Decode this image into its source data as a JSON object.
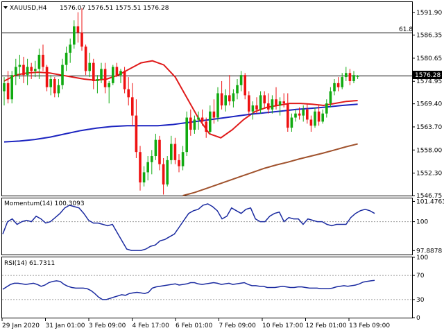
{
  "main": {
    "symbol": "XAUUSD,H4",
    "ohlc": "1576.07 1576.51 1575.51 1576.28",
    "fib_label": "61.8",
    "price_tag": "1576.28"
  },
  "momentum": {
    "title": "Momentum(14) 100.3093"
  },
  "rsi": {
    "title": "RSI(14) 61.7311"
  },
  "colors": {
    "bull": "#11aa11",
    "bear": "#ee1111",
    "sma_fast": "#e01b1b",
    "sma_mid": "#1c24c0",
    "sma_slow": "#a0522d",
    "osc_line": "#1a2aa0",
    "level_line": "#9a9a9a"
  },
  "chart_data": [
    {
      "type": "candlestick",
      "ylim": [
        1546.75,
        1594.5
      ],
      "y_ticks": [
        1591.9,
        1586.35,
        1580.65,
        1574.95,
        1569.4,
        1563.7,
        1558.0,
        1552.3,
        1546.75
      ],
      "x_ticks": [
        "29 Jan 2020",
        "31 Jan 01:00",
        "3 Feb 09:00",
        "4 Feb 17:00",
        "6 Feb 01:00",
        "7 Feb 09:00",
        "10 Feb 17:00",
        "12 Feb 01:00",
        "13 Feb 09:00"
      ],
      "x_tick_index": [
        0,
        15,
        30,
        45,
        60,
        75,
        90,
        105,
        120
      ],
      "horizontal_lines": [
        {
          "label": "61.8",
          "value": 1586.9
        },
        {
          "label": "current",
          "value": 1576.28
        }
      ],
      "candles": [
        {
          "o": 1572.5,
          "h": 1576.0,
          "l": 1569.0,
          "c": 1574.5
        },
        {
          "o": 1574.5,
          "h": 1577.5,
          "l": 1569.5,
          "c": 1570.5
        },
        {
          "o": 1570.5,
          "h": 1577.5,
          "l": 1569.5,
          "c": 1576.5
        },
        {
          "o": 1576.5,
          "h": 1580.5,
          "l": 1574.0,
          "c": 1578.5
        },
        {
          "o": 1578.5,
          "h": 1581.5,
          "l": 1575.5,
          "c": 1579.0
        },
        {
          "o": 1579.0,
          "h": 1581.0,
          "l": 1574.5,
          "c": 1576.5
        },
        {
          "o": 1576.5,
          "h": 1580.5,
          "l": 1574.0,
          "c": 1578.5
        },
        {
          "o": 1578.5,
          "h": 1579.5,
          "l": 1575.5,
          "c": 1577.5
        },
        {
          "o": 1577.5,
          "h": 1580.0,
          "l": 1576.0,
          "c": 1578.0
        },
        {
          "o": 1578.0,
          "h": 1583.0,
          "l": 1575.5,
          "c": 1581.5
        },
        {
          "o": 1581.5,
          "h": 1584.0,
          "l": 1577.5,
          "c": 1578.5
        },
        {
          "o": 1578.5,
          "h": 1579.0,
          "l": 1572.5,
          "c": 1573.5
        },
        {
          "o": 1573.5,
          "h": 1576.5,
          "l": 1571.5,
          "c": 1575.5
        },
        {
          "o": 1575.5,
          "h": 1576.0,
          "l": 1571.0,
          "c": 1572.0
        },
        {
          "o": 1572.0,
          "h": 1575.5,
          "l": 1571.0,
          "c": 1574.0
        },
        {
          "o": 1574.0,
          "h": 1580.5,
          "l": 1573.0,
          "c": 1579.0
        },
        {
          "o": 1579.0,
          "h": 1583.5,
          "l": 1577.5,
          "c": 1582.0
        },
        {
          "o": 1582.0,
          "h": 1585.5,
          "l": 1579.5,
          "c": 1584.0
        },
        {
          "o": 1584.0,
          "h": 1590.0,
          "l": 1583.0,
          "c": 1588.5
        },
        {
          "o": 1588.5,
          "h": 1592.0,
          "l": 1584.5,
          "c": 1587.0
        },
        {
          "o": 1587.0,
          "h": 1593.0,
          "l": 1582.5,
          "c": 1583.5
        },
        {
          "o": 1583.5,
          "h": 1584.0,
          "l": 1576.5,
          "c": 1577.5
        },
        {
          "o": 1577.5,
          "h": 1582.0,
          "l": 1576.0,
          "c": 1579.5
        },
        {
          "o": 1579.5,
          "h": 1580.5,
          "l": 1573.0,
          "c": 1575.0
        },
        {
          "o": 1575.0,
          "h": 1576.5,
          "l": 1572.0,
          "c": 1575.5
        },
        {
          "o": 1575.5,
          "h": 1579.5,
          "l": 1574.5,
          "c": 1578.0
        },
        {
          "o": 1578.0,
          "h": 1579.5,
          "l": 1572.0,
          "c": 1573.5
        },
        {
          "o": 1573.5,
          "h": 1575.0,
          "l": 1569.5,
          "c": 1574.5
        },
        {
          "o": 1574.5,
          "h": 1579.0,
          "l": 1574.0,
          "c": 1578.5
        },
        {
          "o": 1578.5,
          "h": 1579.5,
          "l": 1576.0,
          "c": 1576.5
        },
        {
          "o": 1576.5,
          "h": 1578.0,
          "l": 1574.5,
          "c": 1577.5
        },
        {
          "o": 1577.5,
          "h": 1578.5,
          "l": 1572.0,
          "c": 1573.0
        },
        {
          "o": 1573.0,
          "h": 1576.0,
          "l": 1569.0,
          "c": 1571.0
        },
        {
          "o": 1571.0,
          "h": 1574.5,
          "l": 1564.0,
          "c": 1566.5
        },
        {
          "o": 1566.5,
          "h": 1570.5,
          "l": 1556.0,
          "c": 1557.5
        },
        {
          "o": 1557.5,
          "h": 1559.0,
          "l": 1548.0,
          "c": 1550.0
        },
        {
          "o": 1550.0,
          "h": 1554.0,
          "l": 1549.0,
          "c": 1552.5
        },
        {
          "o": 1552.5,
          "h": 1556.5,
          "l": 1550.5,
          "c": 1555.0
        },
        {
          "o": 1555.0,
          "h": 1558.0,
          "l": 1552.0,
          "c": 1556.5
        },
        {
          "o": 1556.5,
          "h": 1562.0,
          "l": 1555.5,
          "c": 1560.5
        },
        {
          "o": 1560.5,
          "h": 1561.5,
          "l": 1553.0,
          "c": 1554.5
        },
        {
          "o": 1554.5,
          "h": 1556.0,
          "l": 1547.0,
          "c": 1549.5
        },
        {
          "o": 1549.5,
          "h": 1556.5,
          "l": 1549.0,
          "c": 1555.5
        },
        {
          "o": 1555.5,
          "h": 1561.5,
          "l": 1554.5,
          "c": 1559.5
        },
        {
          "o": 1559.5,
          "h": 1561.0,
          "l": 1554.5,
          "c": 1555.5
        },
        {
          "o": 1555.5,
          "h": 1557.0,
          "l": 1552.5,
          "c": 1554.0
        },
        {
          "o": 1554.0,
          "h": 1559.0,
          "l": 1553.0,
          "c": 1557.5
        },
        {
          "o": 1557.5,
          "h": 1567.5,
          "l": 1556.5,
          "c": 1566.0
        },
        {
          "o": 1566.0,
          "h": 1568.0,
          "l": 1561.5,
          "c": 1563.0
        },
        {
          "o": 1563.0,
          "h": 1566.5,
          "l": 1562.0,
          "c": 1565.5
        },
        {
          "o": 1565.5,
          "h": 1567.5,
          "l": 1563.0,
          "c": 1566.0
        },
        {
          "o": 1566.0,
          "h": 1568.0,
          "l": 1564.0,
          "c": 1565.0
        },
        {
          "o": 1565.0,
          "h": 1566.0,
          "l": 1561.0,
          "c": 1562.5
        },
        {
          "o": 1562.5,
          "h": 1569.0,
          "l": 1562.0,
          "c": 1567.5
        },
        {
          "o": 1567.5,
          "h": 1570.5,
          "l": 1564.5,
          "c": 1566.0
        },
        {
          "o": 1566.0,
          "h": 1573.5,
          "l": 1565.0,
          "c": 1572.0
        },
        {
          "o": 1572.0,
          "h": 1575.0,
          "l": 1568.0,
          "c": 1569.0
        },
        {
          "o": 1569.0,
          "h": 1573.0,
          "l": 1567.5,
          "c": 1571.5
        },
        {
          "o": 1571.5,
          "h": 1576.5,
          "l": 1569.0,
          "c": 1570.0
        },
        {
          "o": 1570.0,
          "h": 1573.0,
          "l": 1568.5,
          "c": 1572.0
        },
        {
          "o": 1572.0,
          "h": 1575.5,
          "l": 1570.5,
          "c": 1574.0
        },
        {
          "o": 1574.0,
          "h": 1577.5,
          "l": 1572.5,
          "c": 1576.5
        },
        {
          "o": 1576.5,
          "h": 1577.0,
          "l": 1570.5,
          "c": 1571.5
        },
        {
          "o": 1571.5,
          "h": 1572.5,
          "l": 1566.5,
          "c": 1567.5
        },
        {
          "o": 1567.5,
          "h": 1570.0,
          "l": 1565.5,
          "c": 1569.0
        },
        {
          "o": 1569.0,
          "h": 1571.0,
          "l": 1567.0,
          "c": 1568.0
        },
        {
          "o": 1568.0,
          "h": 1572.5,
          "l": 1567.0,
          "c": 1571.5
        },
        {
          "o": 1571.5,
          "h": 1572.5,
          "l": 1568.5,
          "c": 1569.5
        },
        {
          "o": 1569.5,
          "h": 1572.0,
          "l": 1567.0,
          "c": 1568.0
        },
        {
          "o": 1568.0,
          "h": 1571.5,
          "l": 1567.0,
          "c": 1570.5
        },
        {
          "o": 1570.5,
          "h": 1573.5,
          "l": 1568.0,
          "c": 1569.0
        },
        {
          "o": 1569.0,
          "h": 1571.0,
          "l": 1566.5,
          "c": 1570.0
        },
        {
          "o": 1570.0,
          "h": 1572.0,
          "l": 1568.5,
          "c": 1569.5
        },
        {
          "o": 1569.5,
          "h": 1572.0,
          "l": 1562.5,
          "c": 1563.5
        },
        {
          "o": 1563.5,
          "h": 1567.0,
          "l": 1562.5,
          "c": 1566.0
        },
        {
          "o": 1566.0,
          "h": 1568.0,
          "l": 1565.0,
          "c": 1567.0
        },
        {
          "o": 1567.0,
          "h": 1568.5,
          "l": 1565.5,
          "c": 1566.5
        },
        {
          "o": 1566.5,
          "h": 1569.0,
          "l": 1565.0,
          "c": 1568.0
        },
        {
          "o": 1568.0,
          "h": 1569.5,
          "l": 1564.5,
          "c": 1565.5
        },
        {
          "o": 1565.5,
          "h": 1566.5,
          "l": 1562.5,
          "c": 1564.0
        },
        {
          "o": 1564.0,
          "h": 1568.5,
          "l": 1563.5,
          "c": 1567.5
        },
        {
          "o": 1567.5,
          "h": 1569.0,
          "l": 1564.0,
          "c": 1565.0
        },
        {
          "o": 1565.0,
          "h": 1568.0,
          "l": 1564.5,
          "c": 1567.0
        },
        {
          "o": 1567.0,
          "h": 1570.5,
          "l": 1566.0,
          "c": 1569.5
        },
        {
          "o": 1569.5,
          "h": 1573.5,
          "l": 1568.5,
          "c": 1572.5
        },
        {
          "o": 1572.5,
          "h": 1575.5,
          "l": 1571.5,
          "c": 1574.5
        },
        {
          "o": 1574.5,
          "h": 1576.0,
          "l": 1572.5,
          "c": 1573.5
        },
        {
          "o": 1573.5,
          "h": 1577.0,
          "l": 1573.0,
          "c": 1576.0
        },
        {
          "o": 1576.0,
          "h": 1578.5,
          "l": 1575.0,
          "c": 1577.0
        },
        {
          "o": 1577.0,
          "h": 1578.0,
          "l": 1574.0,
          "c": 1575.0
        },
        {
          "o": 1575.0,
          "h": 1577.5,
          "l": 1574.5,
          "c": 1576.5
        },
        {
          "o": 1576.07,
          "h": 1576.51,
          "l": 1575.51,
          "c": 1576.28
        }
      ],
      "series": [
        {
          "kind": "sma_fast",
          "values": [
            1575.0,
            1576.5,
            1577.0,
            1577.2,
            1577.0,
            1576.5,
            1576.0,
            1575.5,
            1575.2,
            1575.5,
            1576.5,
            1578.0,
            1579.5,
            1580.0,
            1579.0,
            1576.0,
            1571.0,
            1566.0,
            1562.0,
            1561.0,
            1563.0,
            1565.5,
            1567.5,
            1568.5,
            1569.0,
            1569.5,
            1569.5,
            1569.3,
            1569.0,
            1569.5,
            1570.0,
            1570.2
          ]
        },
        {
          "kind": "sma_mid",
          "values": [
            1560.0,
            1560.2,
            1560.6,
            1561.2,
            1562.0,
            1562.8,
            1563.4,
            1563.8,
            1564.0,
            1564.0,
            1564.0,
            1564.3,
            1564.8,
            1565.3,
            1565.8,
            1566.3,
            1566.8,
            1567.2,
            1567.6,
            1568.0,
            1568.3,
            1568.6,
            1569.0,
            1569.3
          ]
        },
        {
          "kind": "sma_slow",
          "values": [
            1546.75,
            1547.5,
            1548.5,
            1549.5,
            1550.5,
            1551.5,
            1552.5,
            1553.5,
            1554.3,
            1555.0,
            1555.8,
            1556.5,
            1557.2,
            1558.0,
            1558.8,
            1559.5
          ]
        }
      ]
    },
    {
      "type": "line",
      "title": "Momentum(14) 100.3093",
      "ylim": [
        97.6,
        101.7
      ],
      "y_ticks": [
        101.4763,
        100,
        97.8878
      ],
      "reference_line": 100,
      "values": [
        99.1,
        100.0,
        100.2,
        99.8,
        100.0,
        100.1,
        100.0,
        100.4,
        100.2,
        99.9,
        100.0,
        100.3,
        100.6,
        101.0,
        101.2,
        101.1,
        101.0,
        100.6,
        100.1,
        99.9,
        99.9,
        99.8,
        99.7,
        99.8,
        99.2,
        98.6,
        98.0,
        97.9,
        97.9,
        97.9,
        98.0,
        98.2,
        98.3,
        98.6,
        98.7,
        98.9,
        99.1,
        99.6,
        100.1,
        100.6,
        100.8,
        100.9,
        101.2,
        101.3,
        101.1,
        100.8,
        100.2,
        100.4,
        101.0,
        100.8,
        100.6,
        100.9,
        101.0,
        100.2,
        100.0,
        100.0,
        100.4,
        100.6,
        100.7,
        100.0,
        100.3,
        100.2,
        100.2,
        99.8,
        100.2,
        100.1,
        100.0,
        100.0,
        99.8,
        99.7,
        99.8,
        99.8,
        99.8,
        100.3,
        100.6,
        100.8,
        100.9,
        100.8,
        100.6
      ]
    },
    {
      "type": "line",
      "title": "RSI(14) 61.7311",
      "ylim": [
        0,
        100
      ],
      "y_ticks": [
        100,
        70,
        30,
        0
      ],
      "reference_lines": [
        70,
        30
      ],
      "values": [
        47,
        51,
        55,
        57,
        57,
        56,
        55,
        56,
        57,
        55,
        52,
        54,
        58,
        60,
        61,
        60,
        55,
        52,
        50,
        49,
        49,
        49,
        48,
        45,
        40,
        34,
        30,
        30,
        32,
        34,
        36,
        38,
        37,
        40,
        41,
        42,
        41,
        40,
        42,
        49,
        51,
        52,
        53,
        54,
        55,
        56,
        54,
        55,
        56,
        58,
        58,
        56,
        55,
        56,
        57,
        58,
        57,
        55,
        56,
        57,
        55,
        56,
        57,
        58,
        55,
        53,
        53,
        52,
        52,
        50,
        50,
        50,
        51,
        52,
        51,
        50,
        50,
        51,
        51,
        50,
        49,
        49,
        49,
        48,
        48,
        48,
        49,
        51,
        52,
        53,
        52,
        53,
        54,
        56,
        59,
        60,
        61,
        61.7311
      ]
    }
  ]
}
